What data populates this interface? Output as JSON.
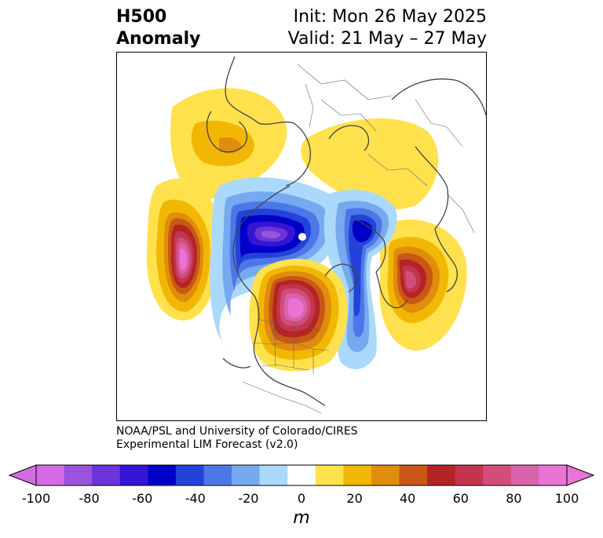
{
  "title": {
    "left_line1": "H500",
    "left_line2": "Anomaly",
    "right_line1": "Init: Mon 26 May 2025",
    "right_line2": "Valid: 21 May – 27 May"
  },
  "credit": {
    "line1": "NOAA/PSL and University of Colorado/CIRES",
    "line2": "Experimental LIM Forecast (v2.0)"
  },
  "colorbar": {
    "unit": "m",
    "tick_labels": [
      "-100",
      "-80",
      "-60",
      "-40",
      "-20",
      "0",
      "20",
      "40",
      "60",
      "80",
      "100"
    ],
    "colors": [
      "#d56be4",
      "#9b52dd",
      "#6b35d9",
      "#3515d4",
      "#0000c8",
      "#2343d8",
      "#4d77e8",
      "#76aaf0",
      "#aad9fb",
      "#ffffff",
      "#ffe14d",
      "#f2b705",
      "#e08c0c",
      "#c95716",
      "#b32424",
      "#c3344e",
      "#d24d7c",
      "#d963aa",
      "#ea74d6"
    ],
    "levels": [
      -100,
      -90,
      -80,
      -70,
      -60,
      -50,
      -40,
      -30,
      -20,
      -10,
      10,
      20,
      30,
      40,
      50,
      60,
      70,
      80,
      90,
      100
    ]
  },
  "map": {
    "projection": "north polar stereographic",
    "field": "500 hPa geopotential height anomaly"
  }
}
